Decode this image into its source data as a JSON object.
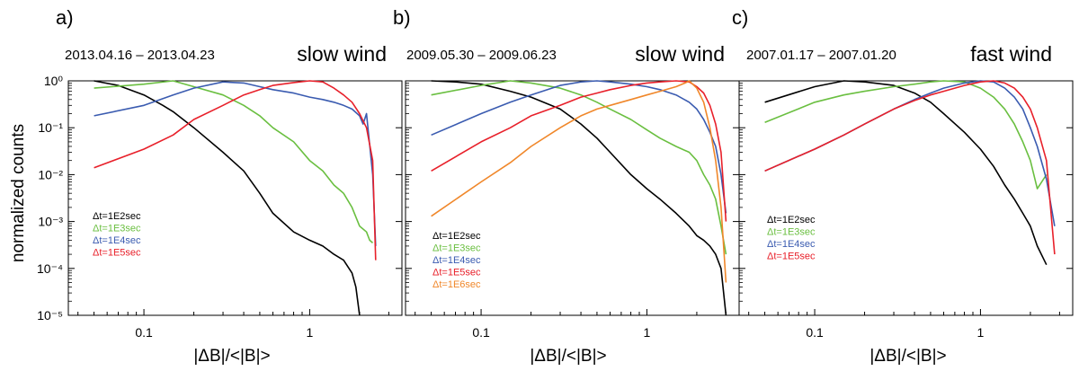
{
  "figure": {
    "ylabel": "normalized counts"
  },
  "chart_data": [
    {
      "type": "line",
      "panel": "a)",
      "date_range": "2013.04.16 – 2013.04.23",
      "wind": "slow wind",
      "xlabel": "|ΔB|/<|B|>",
      "xscale": "log",
      "yscale": "log",
      "xlim": [
        0.035,
        3.6
      ],
      "ylim": [
        1e-05,
        1
      ],
      "xticks": [
        "0.1",
        "1"
      ],
      "yticks": [
        "10⁰",
        "10⁻¹",
        "10⁻²",
        "10⁻³",
        "10⁻⁴",
        "10⁻⁵"
      ],
      "series": [
        {
          "name": "Δt=1E2sec",
          "color": "#000000",
          "x": [
            0.05,
            0.07,
            0.1,
            0.13,
            0.15,
            0.2,
            0.3,
            0.4,
            0.5,
            0.6,
            0.8,
            1.0,
            1.2,
            1.4,
            1.6,
            1.8,
            1.9,
            2.0
          ],
          "y": [
            1.0,
            0.8,
            0.5,
            0.3,
            0.22,
            0.1,
            0.03,
            0.012,
            0.004,
            0.0015,
            0.0006,
            0.0004,
            0.0003,
            0.0002,
            0.00015,
            8e-05,
            4e-05,
            1e-05
          ]
        },
        {
          "name": "Δt=1E3sec",
          "color": "#6abf40",
          "x": [
            0.05,
            0.1,
            0.15,
            0.2,
            0.3,
            0.4,
            0.5,
            0.6,
            0.8,
            1.0,
            1.2,
            1.4,
            1.6,
            1.8,
            2.0,
            2.2,
            2.3,
            2.4
          ],
          "y": [
            0.7,
            0.85,
            1.0,
            0.75,
            0.5,
            0.3,
            0.18,
            0.1,
            0.05,
            0.02,
            0.012,
            0.006,
            0.004,
            0.002,
            0.0008,
            0.0006,
            0.0004,
            0.00035
          ]
        },
        {
          "name": "Δt=1E4sec",
          "color": "#3a5bb0",
          "x": [
            0.05,
            0.1,
            0.15,
            0.2,
            0.3,
            0.4,
            0.5,
            0.6,
            0.8,
            1.0,
            1.2,
            1.4,
            1.6,
            1.8,
            2.0,
            2.1,
            2.2,
            2.4,
            2.5
          ],
          "y": [
            0.18,
            0.3,
            0.5,
            0.7,
            0.95,
            0.9,
            0.75,
            0.65,
            0.55,
            0.45,
            0.4,
            0.35,
            0.3,
            0.25,
            0.18,
            0.12,
            0.2,
            0.01,
            0.0003
          ]
        },
        {
          "name": "Δt=1E5sec",
          "color": "#e8202a",
          "x": [
            0.05,
            0.1,
            0.15,
            0.2,
            0.3,
            0.4,
            0.5,
            0.6,
            0.8,
            1.0,
            1.2,
            1.4,
            1.6,
            1.8,
            2.0,
            2.2,
            2.4,
            2.5
          ],
          "y": [
            0.014,
            0.035,
            0.07,
            0.15,
            0.3,
            0.5,
            0.65,
            0.8,
            0.92,
            1.0,
            0.95,
            0.7,
            0.5,
            0.35,
            0.2,
            0.1,
            0.02,
            0.00015
          ]
        }
      ]
    },
    {
      "type": "line",
      "panel": "b)",
      "date_range": "2009.05.30 – 2009.06.23",
      "wind": "slow wind",
      "xlabel": "|ΔB|/<|B|>",
      "xscale": "log",
      "yscale": "log",
      "xlim": [
        0.035,
        3.6
      ],
      "ylim": [
        1e-05,
        1
      ],
      "xticks": [
        "0.1",
        "1"
      ],
      "yticks": [],
      "series": [
        {
          "name": "Δt=1E2sec",
          "color": "#000000",
          "x": [
            0.05,
            0.07,
            0.1,
            0.15,
            0.2,
            0.3,
            0.4,
            0.5,
            0.6,
            0.8,
            1.0,
            1.2,
            1.5,
            1.8,
            2.0,
            2.2,
            2.4,
            2.6,
            2.8,
            3.0
          ],
          "y": [
            1.0,
            0.95,
            0.85,
            0.6,
            0.45,
            0.25,
            0.12,
            0.06,
            0.03,
            0.01,
            0.005,
            0.003,
            0.0015,
            0.0008,
            0.0005,
            0.0004,
            0.0003,
            0.0002,
            0.0001,
            1e-05
          ]
        },
        {
          "name": "Δt=1E3sec",
          "color": "#6abf40",
          "x": [
            0.05,
            0.1,
            0.15,
            0.2,
            0.3,
            0.4,
            0.5,
            0.6,
            0.8,
            1.0,
            1.2,
            1.5,
            1.8,
            2.0,
            2.2,
            2.4,
            2.6,
            2.8,
            3.0
          ],
          "y": [
            0.5,
            0.8,
            1.0,
            0.9,
            0.7,
            0.5,
            0.35,
            0.25,
            0.15,
            0.09,
            0.06,
            0.04,
            0.03,
            0.02,
            0.01,
            0.006,
            0.003,
            0.0008,
            0.0002
          ]
        },
        {
          "name": "Δt=1E4sec",
          "color": "#3a5bb0",
          "x": [
            0.05,
            0.1,
            0.15,
            0.2,
            0.3,
            0.4,
            0.5,
            0.6,
            0.8,
            1.0,
            1.2,
            1.5,
            1.8,
            2.0,
            2.2,
            2.4,
            2.6,
            2.8,
            3.0
          ],
          "y": [
            0.07,
            0.2,
            0.35,
            0.5,
            0.8,
            0.95,
            1.0,
            0.95,
            0.85,
            0.75,
            0.65,
            0.5,
            0.35,
            0.25,
            0.15,
            0.08,
            0.04,
            0.01,
            0.0015
          ]
        },
        {
          "name": "Δt=1E5sec",
          "color": "#e8202a",
          "x": [
            0.05,
            0.1,
            0.15,
            0.2,
            0.3,
            0.4,
            0.5,
            0.6,
            0.8,
            1.0,
            1.2,
            1.5,
            1.8,
            2.0,
            2.2,
            2.4,
            2.6,
            2.8,
            3.0
          ],
          "y": [
            0.012,
            0.05,
            0.1,
            0.18,
            0.3,
            0.45,
            0.55,
            0.65,
            0.8,
            0.9,
            0.95,
            1.0,
            0.95,
            0.75,
            0.55,
            0.3,
            0.12,
            0.03,
            0.001
          ]
        },
        {
          "name": "Δt=1E6sec",
          "color": "#f0872a",
          "x": [
            0.05,
            0.1,
            0.15,
            0.2,
            0.3,
            0.4,
            0.5,
            0.6,
            0.8,
            1.0,
            1.2,
            1.5,
            1.7,
            1.8,
            2.0,
            2.2,
            2.4,
            2.6,
            2.8,
            3.0
          ],
          "y": [
            0.0013,
            0.007,
            0.018,
            0.04,
            0.1,
            0.18,
            0.25,
            0.3,
            0.4,
            0.5,
            0.6,
            0.75,
            0.9,
            1.0,
            0.7,
            0.35,
            0.1,
            0.02,
            0.002,
            5e-05
          ]
        }
      ]
    },
    {
      "type": "line",
      "panel": "c)",
      "date_range": "2007.01.17 – 2007.01.20",
      "wind": "fast wind",
      "xlabel": "|ΔB|/<|B|>",
      "xscale": "log",
      "yscale": "log",
      "xlim": [
        0.035,
        3.6
      ],
      "ylim": [
        1e-05,
        1
      ],
      "xticks": [
        "0.1",
        "1"
      ],
      "yticks": [],
      "series": [
        {
          "name": "Δt=1E2sec",
          "color": "#000000",
          "x": [
            0.05,
            0.1,
            0.15,
            0.2,
            0.3,
            0.4,
            0.5,
            0.6,
            0.8,
            1.0,
            1.2,
            1.4,
            1.6,
            1.8,
            2.0,
            2.2,
            2.5
          ],
          "y": [
            0.35,
            0.75,
            1.0,
            0.95,
            0.8,
            0.55,
            0.35,
            0.2,
            0.08,
            0.035,
            0.015,
            0.006,
            0.003,
            0.0015,
            0.0008,
            0.0003,
            0.00012
          ]
        },
        {
          "name": "Δt=1E3sec",
          "color": "#6abf40",
          "x": [
            0.05,
            0.1,
            0.15,
            0.2,
            0.3,
            0.4,
            0.5,
            0.6,
            0.8,
            1.0,
            1.2,
            1.4,
            1.6,
            1.8,
            2.0,
            2.2,
            2.5
          ],
          "y": [
            0.13,
            0.35,
            0.5,
            0.6,
            0.75,
            0.85,
            0.95,
            1.0,
            0.95,
            0.7,
            0.45,
            0.25,
            0.12,
            0.05,
            0.02,
            0.005,
            0.01
          ]
        },
        {
          "name": "Δt=1E4sec",
          "color": "#3a5bb0",
          "x": [
            0.05,
            0.1,
            0.15,
            0.2,
            0.3,
            0.4,
            0.5,
            0.6,
            0.8,
            1.0,
            1.2,
            1.4,
            1.6,
            1.8,
            2.0,
            2.2,
            2.5,
            2.8
          ],
          "y": [
            0.012,
            0.035,
            0.07,
            0.12,
            0.25,
            0.4,
            0.55,
            0.7,
            0.9,
            1.0,
            0.95,
            0.7,
            0.45,
            0.25,
            0.1,
            0.04,
            0.008,
            0.0008
          ]
        },
        {
          "name": "Δt=1E5sec",
          "color": "#e8202a",
          "x": [
            0.05,
            0.1,
            0.15,
            0.2,
            0.3,
            0.4,
            0.5,
            0.6,
            0.8,
            1.0,
            1.2,
            1.4,
            1.6,
            1.8,
            2.0,
            2.2,
            2.5,
            2.8
          ],
          "y": [
            0.012,
            0.035,
            0.07,
            0.12,
            0.25,
            0.38,
            0.5,
            0.6,
            0.8,
            0.95,
            1.0,
            0.9,
            0.7,
            0.45,
            0.25,
            0.1,
            0.02,
            0.0002
          ]
        }
      ]
    }
  ]
}
